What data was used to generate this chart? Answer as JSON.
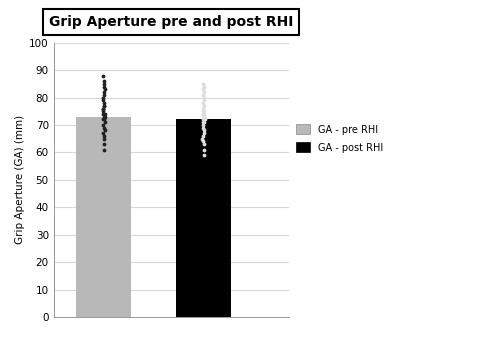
{
  "title": "Grip Aperture pre and post RHI",
  "ylabel": "Grip Aperture (GA) (mm)",
  "categories": [
    "pre RHI",
    "post RHI"
  ],
  "bar_means": [
    73.0,
    72.0
  ],
  "bar_colors": [
    "#b8b8b8",
    "#000000"
  ],
  "ylim": [
    0,
    100
  ],
  "yticks": [
    0,
    10,
    20,
    30,
    40,
    50,
    60,
    70,
    80,
    90,
    100
  ],
  "legend_labels": [
    "GA - pre RHI",
    "GA - post RHI"
  ],
  "legend_colors": [
    "#b8b8b8",
    "#000000"
  ],
  "pre_dots": [
    88,
    86,
    85,
    84,
    83,
    82,
    81,
    80,
    79,
    78,
    77,
    77,
    76,
    76,
    75,
    74,
    74,
    73,
    73,
    72,
    72,
    71,
    70,
    69,
    68,
    67,
    66,
    65,
    63,
    61
  ],
  "post_dots": [
    85,
    84,
    83,
    82,
    81,
    80,
    79,
    78,
    77,
    76,
    75,
    75,
    74,
    74,
    73,
    73,
    72,
    72,
    71,
    71,
    70,
    69,
    68,
    67,
    66,
    65,
    64,
    63,
    61,
    59
  ],
  "dot_color_pre": "#222222",
  "dot_color_post": "#dddddd",
  "bar_width": 0.55,
  "background_color": "#ffffff",
  "grid_color": "#d8d8d8"
}
